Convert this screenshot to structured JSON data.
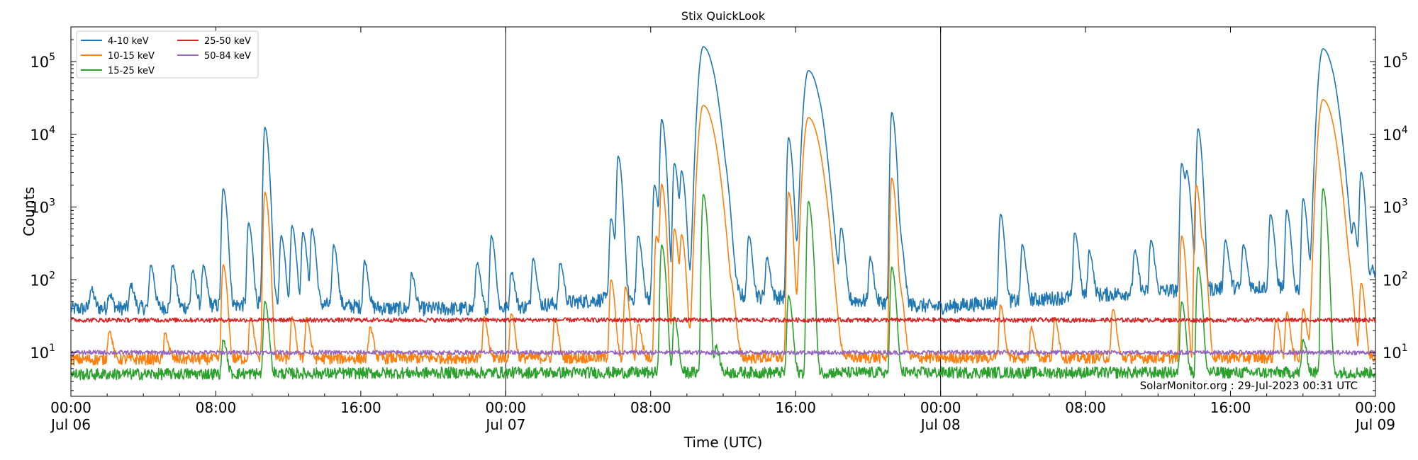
{
  "chart_data": {
    "type": "line",
    "title": "Stix QuickLook",
    "xlabel": "Time (UTC)",
    "ylabel": "Counts",
    "yscale": "log",
    "ylim": [
      2.5,
      300000
    ],
    "xlim_hours": [
      0,
      72
    ],
    "x_units": "hours since 2023-07-06 00:00 UTC",
    "x_ticks": [
      {
        "hour": 0,
        "time": "00:00",
        "date": "Jul 06"
      },
      {
        "hour": 8,
        "time": "08:00",
        "date": ""
      },
      {
        "hour": 16,
        "time": "16:00",
        "date": ""
      },
      {
        "hour": 24,
        "time": "00:00",
        "date": "Jul 07"
      },
      {
        "hour": 32,
        "time": "08:00",
        "date": ""
      },
      {
        "hour": 40,
        "time": "16:00",
        "date": ""
      },
      {
        "hour": 48,
        "time": "00:00",
        "date": "Jul 08"
      },
      {
        "hour": 56,
        "time": "08:00",
        "date": ""
      },
      {
        "hour": 64,
        "time": "16:00",
        "date": ""
      },
      {
        "hour": 72,
        "time": "00:00",
        "date": "Jul 09"
      }
    ],
    "y_ticks": [
      {
        "value": 10,
        "label": "10",
        "exp": "1"
      },
      {
        "value": 100,
        "label": "10",
        "exp": "2"
      },
      {
        "value": 1000,
        "label": "10",
        "exp": "3"
      },
      {
        "value": 10000,
        "label": "10",
        "exp": "4"
      },
      {
        "value": 100000,
        "label": "10",
        "exp": "5"
      }
    ],
    "day_dividers_hours": [
      24,
      48
    ],
    "annotation": "SolarMonitor.org : 29-Jul-2023 00:31 UTC",
    "legend_position": "top-left",
    "grid": false,
    "series": [
      {
        "name": "4-10 keV",
        "color": "#1f77b4",
        "baseline": [
          [
            0,
            40
          ],
          [
            6,
            42
          ],
          [
            12,
            48
          ],
          [
            18,
            40
          ],
          [
            24,
            40
          ],
          [
            30,
            55
          ],
          [
            36,
            60
          ],
          [
            42,
            55
          ],
          [
            48,
            42
          ],
          [
            54,
            55
          ],
          [
            60,
            70
          ],
          [
            66,
            80
          ],
          [
            72,
            60
          ]
        ],
        "peaks": [
          [
            1.1,
            75
          ],
          [
            2.1,
            65
          ],
          [
            3.3,
            85
          ],
          [
            4.4,
            160
          ],
          [
            5.6,
            160
          ],
          [
            6.7,
            130
          ],
          [
            7.3,
            150
          ],
          [
            8.4,
            1800
          ],
          [
            9.8,
            600
          ],
          [
            10.7,
            12500
          ],
          [
            11.6,
            400
          ],
          [
            12.2,
            550
          ],
          [
            12.8,
            450
          ],
          [
            13.3,
            500
          ],
          [
            14.5,
            300
          ],
          [
            16.2,
            180
          ],
          [
            18.8,
            120
          ],
          [
            22.4,
            170
          ],
          [
            23.2,
            400
          ],
          [
            24.3,
            130
          ],
          [
            25.5,
            200
          ],
          [
            27.0,
            170
          ],
          [
            29.8,
            700
          ],
          [
            30.2,
            5000
          ],
          [
            31.3,
            400
          ],
          [
            32.2,
            2000
          ],
          [
            32.6,
            16000
          ],
          [
            33.3,
            4000
          ],
          [
            33.7,
            3000
          ],
          [
            34.9,
            160000
          ],
          [
            35.5,
            1500
          ],
          [
            36.2,
            600
          ],
          [
            37.4,
            400
          ],
          [
            38.4,
            200
          ],
          [
            39.6,
            9000
          ],
          [
            40.7,
            75000
          ],
          [
            41.4,
            1500
          ],
          [
            42.5,
            500
          ],
          [
            44.1,
            200
          ],
          [
            45.3,
            20000
          ],
          [
            45.8,
            300
          ],
          [
            51.3,
            800
          ],
          [
            52.5,
            300
          ],
          [
            55.4,
            450
          ],
          [
            56.2,
            250
          ],
          [
            58.7,
            250
          ],
          [
            59.6,
            350
          ],
          [
            61.3,
            4000
          ],
          [
            61.6,
            2500
          ],
          [
            62.2,
            12000
          ],
          [
            63.7,
            350
          ],
          [
            64.7,
            300
          ],
          [
            66.2,
            800
          ],
          [
            67.1,
            900
          ],
          [
            68.0,
            1300
          ],
          [
            69.1,
            150000
          ],
          [
            69.7,
            2000
          ],
          [
            70.8,
            500
          ],
          [
            71.2,
            3000
          ],
          [
            71.8,
            150
          ]
        ]
      },
      {
        "name": "10-15 keV",
        "color": "#ff7f0e",
        "baseline": [
          [
            0,
            8
          ],
          [
            24,
            8.5
          ],
          [
            48,
            8.5
          ],
          [
            72,
            8.5
          ]
        ],
        "peaks": [
          [
            2.1,
            20
          ],
          [
            5.2,
            18
          ],
          [
            8.4,
            160
          ],
          [
            9.9,
            30
          ],
          [
            10.7,
            1600
          ],
          [
            12.2,
            30
          ],
          [
            13.0,
            30
          ],
          [
            16.5,
            22
          ],
          [
            22.8,
            30
          ],
          [
            24.3,
            35
          ],
          [
            26.7,
            30
          ],
          [
            29.8,
            100
          ],
          [
            30.6,
            80
          ],
          [
            31.3,
            25
          ],
          [
            32.3,
            400
          ],
          [
            32.6,
            2000
          ],
          [
            33.3,
            500
          ],
          [
            33.7,
            400
          ],
          [
            34.9,
            25000
          ],
          [
            35.6,
            60
          ],
          [
            36.5,
            40
          ],
          [
            39.6,
            1600
          ],
          [
            40.7,
            17000
          ],
          [
            41.3,
            50
          ],
          [
            45.3,
            2500
          ],
          [
            45.8,
            60
          ],
          [
            51.3,
            45
          ],
          [
            53.0,
            22
          ],
          [
            54.3,
            30
          ],
          [
            57.5,
            40
          ],
          [
            61.3,
            400
          ],
          [
            62.1,
            2000
          ],
          [
            62.5,
            250
          ],
          [
            66.5,
            30
          ],
          [
            67.1,
            35
          ],
          [
            68.0,
            40
          ],
          [
            69.1,
            30000
          ],
          [
            69.5,
            200
          ],
          [
            70.6,
            40
          ],
          [
            71.2,
            90
          ]
        ]
      },
      {
        "name": "15-25 keV",
        "color": "#2ca02c",
        "baseline": [
          [
            0,
            5
          ],
          [
            24,
            5.3
          ],
          [
            48,
            5.3
          ],
          [
            72,
            5.3
          ]
        ],
        "peaks": [
          [
            8.4,
            15
          ],
          [
            10.7,
            50
          ],
          [
            32.6,
            300
          ],
          [
            33.3,
            30
          ],
          [
            34.9,
            1500
          ],
          [
            35.6,
            12
          ],
          [
            39.6,
            60
          ],
          [
            40.7,
            1200
          ],
          [
            45.3,
            150
          ],
          [
            61.3,
            50
          ],
          [
            62.2,
            150
          ],
          [
            68.0,
            15
          ],
          [
            69.1,
            1800
          ]
        ]
      },
      {
        "name": "25-50 keV",
        "color": "#d62728",
        "baseline": [
          [
            0,
            28
          ],
          [
            24,
            28
          ],
          [
            48,
            28
          ],
          [
            72,
            28
          ]
        ],
        "peaks": []
      },
      {
        "name": "50-84 keV",
        "color": "#9467bd",
        "baseline": [
          [
            0,
            10
          ],
          [
            24,
            10
          ],
          [
            48,
            10
          ],
          [
            72,
            10
          ]
        ],
        "peaks": []
      }
    ]
  }
}
